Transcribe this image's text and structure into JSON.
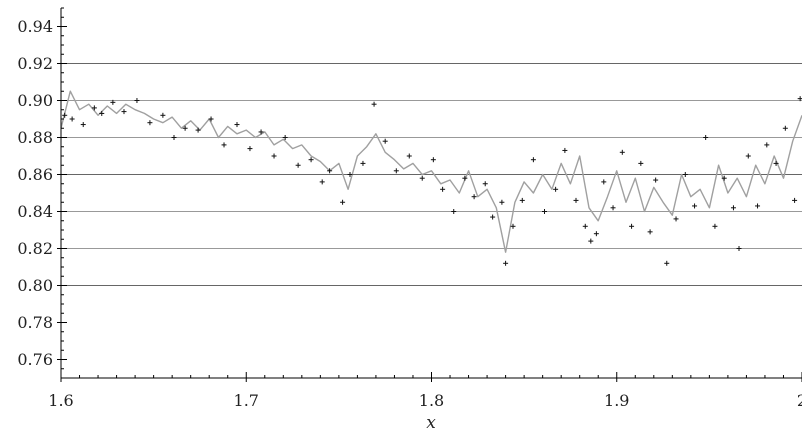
{
  "chart_data": {
    "type": "line",
    "title": "",
    "xlabel": "x",
    "ylabel": "",
    "xlim": [
      1.6,
      2.0
    ],
    "ylim": [
      0.75,
      0.95
    ],
    "x_ticks": [
      1.6,
      1.7,
      1.8,
      1.9,
      2.0
    ],
    "x_tick_labels": [
      "1.6",
      "1.7",
      "1.8",
      "1.9",
      "2"
    ],
    "y_ticks": [
      0.76,
      0.78,
      0.8,
      0.82,
      0.84,
      0.86,
      0.88,
      0.9,
      0.92,
      0.94
    ],
    "y_tick_labels": [
      "0.76",
      "0.78",
      "0.80",
      "0.82",
      "0.84",
      "0.86",
      "0.88",
      "0.90",
      "0.92",
      "0.94"
    ],
    "hlines": [
      {
        "y": 0.8,
        "color": "#666666"
      },
      {
        "y": 0.82,
        "color": "#999999"
      },
      {
        "y": 0.84,
        "color": "#999999"
      },
      {
        "y": 0.86,
        "color": "#666666"
      },
      {
        "y": 0.88,
        "color": "#999999"
      },
      {
        "y": 0.9,
        "color": "#999999"
      },
      {
        "y": 0.92,
        "color": "#666666"
      }
    ],
    "grid": false,
    "legend": "none",
    "series": [
      {
        "kind": "line",
        "color": "#a0a0a0",
        "x": [
          1.6,
          1.605,
          1.61,
          1.615,
          1.62,
          1.625,
          1.63,
          1.635,
          1.64,
          1.645,
          1.65,
          1.655,
          1.66,
          1.665,
          1.67,
          1.675,
          1.68,
          1.685,
          1.69,
          1.695,
          1.7,
          1.705,
          1.71,
          1.715,
          1.72,
          1.725,
          1.73,
          1.735,
          1.74,
          1.745,
          1.75,
          1.755,
          1.76,
          1.765,
          1.77,
          1.775,
          1.78,
          1.785,
          1.79,
          1.795,
          1.8,
          1.805,
          1.81,
          1.815,
          1.82,
          1.825,
          1.83,
          1.835,
          1.84,
          1.845,
          1.85,
          1.855,
          1.86,
          1.865,
          1.87,
          1.875,
          1.88,
          1.885,
          1.89,
          1.895,
          1.9,
          1.905,
          1.91,
          1.915,
          1.92,
          1.925,
          1.93,
          1.935,
          1.94,
          1.945,
          1.95,
          1.955,
          1.96,
          1.965,
          1.97,
          1.975,
          1.98,
          1.985,
          1.99,
          1.995,
          2.0
        ],
        "y": [
          0.885,
          0.905,
          0.895,
          0.898,
          0.892,
          0.897,
          0.893,
          0.898,
          0.895,
          0.893,
          0.89,
          0.888,
          0.891,
          0.885,
          0.889,
          0.884,
          0.89,
          0.88,
          0.886,
          0.882,
          0.884,
          0.88,
          0.883,
          0.876,
          0.879,
          0.874,
          0.876,
          0.87,
          0.867,
          0.862,
          0.866,
          0.852,
          0.87,
          0.875,
          0.882,
          0.872,
          0.868,
          0.863,
          0.866,
          0.86,
          0.862,
          0.855,
          0.857,
          0.85,
          0.862,
          0.848,
          0.852,
          0.842,
          0.818,
          0.845,
          0.856,
          0.85,
          0.86,
          0.852,
          0.866,
          0.855,
          0.87,
          0.842,
          0.835,
          0.848,
          0.862,
          0.845,
          0.858,
          0.84,
          0.853,
          0.845,
          0.838,
          0.86,
          0.848,
          0.852,
          0.842,
          0.865,
          0.85,
          0.858,
          0.848,
          0.865,
          0.855,
          0.87,
          0.858,
          0.878,
          0.892
        ]
      },
      {
        "kind": "scatter",
        "marker": "plus",
        "color": "#111111",
        "x": [
          1.602,
          1.606,
          1.612,
          1.618,
          1.622,
          1.628,
          1.634,
          1.641,
          1.648,
          1.655,
          1.661,
          1.667,
          1.674,
          1.681,
          1.688,
          1.695,
          1.702,
          1.708,
          1.715,
          1.721,
          1.728,
          1.735,
          1.741,
          1.745,
          1.752,
          1.756,
          1.763,
          1.769,
          1.775,
          1.781,
          1.788,
          1.795,
          1.801,
          1.806,
          1.812,
          1.818,
          1.823,
          1.829,
          1.833,
          1.838,
          1.84,
          1.844,
          1.849,
          1.855,
          1.861,
          1.867,
          1.872,
          1.878,
          1.883,
          1.886,
          1.889,
          1.893,
          1.898,
          1.903,
          1.908,
          1.913,
          1.918,
          1.921,
          1.927,
          1.932,
          1.937,
          1.942,
          1.948,
          1.953,
          1.958,
          1.963,
          1.966,
          1.971,
          1.976,
          1.981,
          1.986,
          1.991,
          1.996,
          1.999
        ],
        "y": [
          0.892,
          0.89,
          0.887,
          0.896,
          0.893,
          0.899,
          0.894,
          0.9,
          0.888,
          0.892,
          0.88,
          0.885,
          0.884,
          0.89,
          0.876,
          0.887,
          0.874,
          0.883,
          0.87,
          0.88,
          0.865,
          0.868,
          0.856,
          0.862,
          0.845,
          0.86,
          0.866,
          0.898,
          0.878,
          0.862,
          0.87,
          0.858,
          0.868,
          0.852,
          0.84,
          0.858,
          0.848,
          0.855,
          0.837,
          0.845,
          0.812,
          0.832,
          0.846,
          0.868,
          0.84,
          0.852,
          0.873,
          0.846,
          0.832,
          0.824,
          0.828,
          0.856,
          0.842,
          0.872,
          0.832,
          0.866,
          0.829,
          0.857,
          0.812,
          0.836,
          0.86,
          0.843,
          0.88,
          0.832,
          0.858,
          0.842,
          0.82,
          0.87,
          0.843,
          0.876,
          0.866,
          0.885,
          0.846,
          0.901
        ]
      }
    ]
  }
}
